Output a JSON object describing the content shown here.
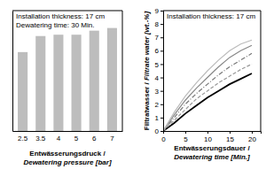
{
  "chart_data": [
    {
      "type": "bar",
      "annotations": [
        "Installation thickness: 17 cm",
        "Dewatering time: 30 Min."
      ],
      "x_label": [
        "Entwässerungsdruck /",
        "Dewatering pressure [bar]"
      ],
      "categories": [
        "2.5",
        "3.5",
        "4",
        "5",
        "6",
        "7"
      ],
      "values": [
        5.9,
        7.1,
        7.2,
        7.2,
        7.5,
        7.7
      ],
      "color": "#bdbdbd",
      "ylim": [
        0,
        9
      ],
      "tick_labels": "x"
    },
    {
      "type": "line",
      "annotations": [
        "Installation thickness: 17 cm"
      ],
      "x_label": [
        "Entwässerungsdauer /",
        "Dewatering time [Min.]"
      ],
      "y_label": [
        "Filtratwasser /",
        "Filtrate water [wt.-%]"
      ],
      "x": [
        0,
        2.5,
        5,
        7.5,
        10,
        12.5,
        15,
        17.5,
        20
      ],
      "series": [
        {
          "color": "#000000",
          "line_style": "solid",
          "values": [
            0,
            0.6,
            1.3,
            1.9,
            2.5,
            3.0,
            3.5,
            3.9,
            4.3
          ]
        },
        {
          "color": "#999999",
          "line_style": "dashed",
          "values": [
            0,
            0.8,
            1.6,
            2.4,
            3.0,
            3.6,
            4.1,
            4.6,
            5.0
          ]
        },
        {
          "color": "#777777",
          "line_style": "dashdot",
          "values": [
            0,
            1.0,
            2.0,
            2.8,
            3.5,
            4.2,
            4.8,
            5.3,
            5.8
          ]
        },
        {
          "color": "#888888",
          "line_style": "solid",
          "values": [
            0,
            1.2,
            2.3,
            3.2,
            4.0,
            4.8,
            5.5,
            6.0,
            6.4
          ]
        },
        {
          "color": "#bbbbbb",
          "line_style": "solid",
          "values": [
            0,
            1.4,
            2.6,
            3.6,
            4.5,
            5.3,
            6.0,
            6.5,
            6.8
          ]
        }
      ],
      "xlim": [
        0,
        22
      ],
      "xticks": [
        0,
        5,
        10,
        15,
        20
      ],
      "ylim": [
        0,
        9
      ],
      "yticks": [
        0,
        1,
        2,
        3,
        4,
        5,
        6,
        7,
        8,
        9
      ]
    }
  ]
}
